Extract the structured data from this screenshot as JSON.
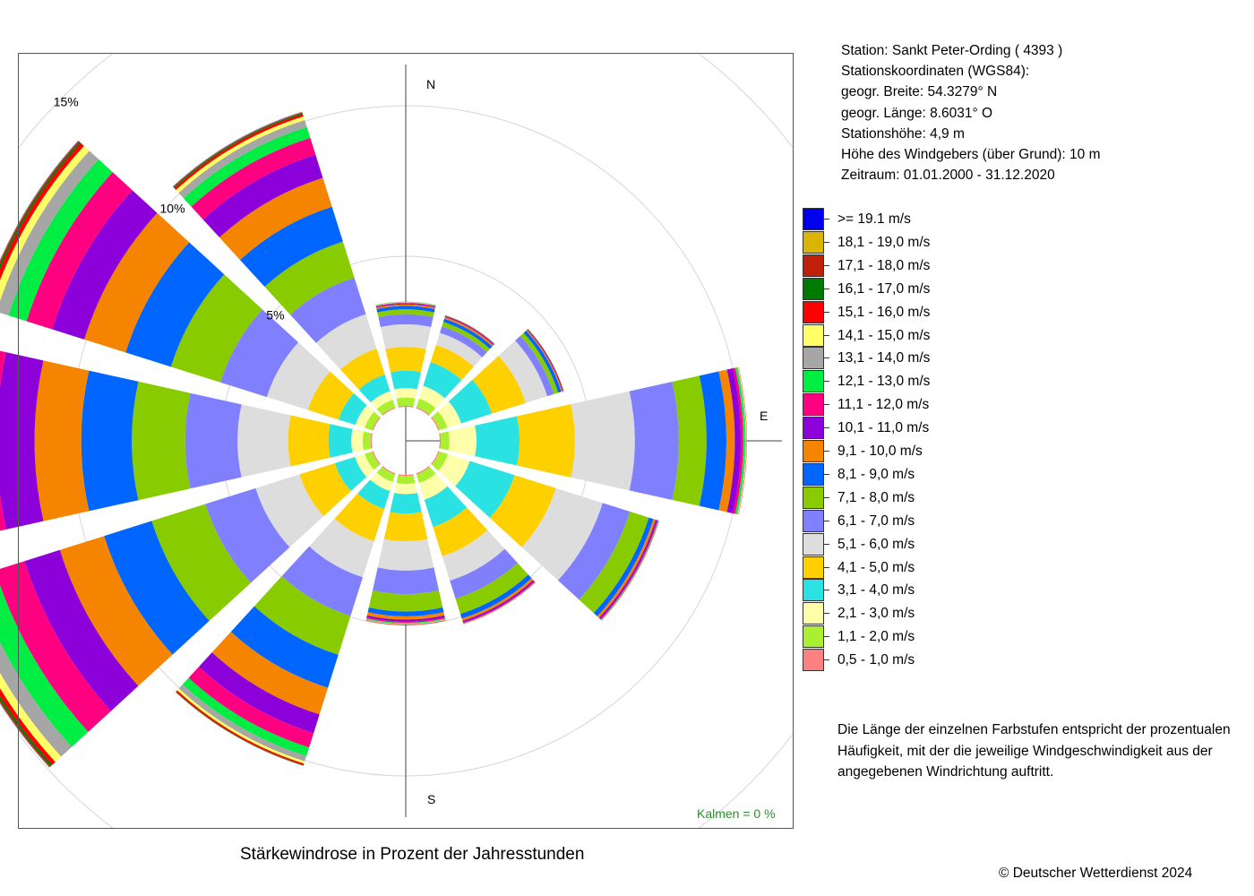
{
  "station": {
    "line1": "Station:  Sankt Peter-Ording  ( 4393 )",
    "line2": "Stationskoordinaten (WGS84):",
    "line3": "geogr. Breite: 54.3279° N",
    "line4": "geogr. Länge:   8.6031° O",
    "line5": "Stationshöhe: 4,9 m",
    "line6": "Höhe des Windgebers (über Grund): 10 m",
    "line7": "Zeitraum: 01.01.2000 - 31.12.2020"
  },
  "legend": [
    {
      "label": ">= 19.1 m/s",
      "color": "#0000ee"
    },
    {
      "label": "18,1 - 19,0 m/s",
      "color": "#d9b400"
    },
    {
      "label": "17,1 - 18,0 m/s",
      "color": "#c0200a"
    },
    {
      "label": "16,1 - 17,0 m/s",
      "color": "#007a00"
    },
    {
      "label": "15,1 - 16,0 m/s",
      "color": "#ff0000"
    },
    {
      "label": "14,1 - 15,0 m/s",
      "color": "#ffff66"
    },
    {
      "label": "13,1 - 14,0 m/s",
      "color": "#a6a6a6"
    },
    {
      "label": "12,1 - 13,0 m/s",
      "color": "#00ee44"
    },
    {
      "label": "11,1 - 12,0 m/s",
      "color": "#ff0080"
    },
    {
      "label": "10,1 - 11,0 m/s",
      "color": "#8c00d9"
    },
    {
      "label": "9,1 - 10,0 m/s",
      "color": "#f58400"
    },
    {
      "label": "8,1 - 9,0 m/s",
      "color": "#0066ff"
    },
    {
      "label": "7,1 - 8,0 m/s",
      "color": "#88cc00"
    },
    {
      "label": "6,1 - 7,0 m/s",
      "color": "#8080ff"
    },
    {
      "label": "5,1 - 6,0 m/s",
      "color": "#dddddd"
    },
    {
      "label": "4,1 - 5,0 m/s",
      "color": "#ffd000"
    },
    {
      "label": "3,1 - 4,0 m/s",
      "color": "#2ae2e2"
    },
    {
      "label": "2,1 - 3,0 m/s",
      "color": "#ffffaa"
    },
    {
      "label": "1,1 - 2,0 m/s",
      "color": "#aaf030"
    },
    {
      "label": "0,5 - 1,0 m/s",
      "color": "#ff8080"
    }
  ],
  "note": {
    "line1": "Die Länge der einzelnen Farbstufen entspricht der prozentualen",
    "line2": "Häufigkeit, mit der die jeweilige Windgeschwindigkeit aus der",
    "line3": "angegebenen Windrichtung auftritt."
  },
  "title": "Stärkewindrose in Prozent der Jahresstunden",
  "copyright": "© Deutscher Wetterdienst  2024",
  "calm_label": "Kalmen  =  0 %",
  "compass": {
    "N": "N",
    "E": "E",
    "S": "S"
  },
  "chart_data": {
    "type": "windrose",
    "directions_deg": [
      0,
      30,
      60,
      90,
      120,
      150,
      180,
      210,
      240,
      270,
      300,
      330
    ],
    "ring_labels": [
      "5%",
      "10%",
      "15%"
    ],
    "ring_values": [
      5,
      10,
      15
    ],
    "cumulative_percent": [
      [
        0.04,
        0.31,
        0.62,
        1.2,
        1.99,
        2.74,
        3.08,
        3.24,
        3.35,
        3.4,
        3.43,
        3.45,
        3.46,
        3.47,
        3.48,
        3.48,
        3.49,
        3.49,
        3.49,
        3.49
      ],
      [
        0.04,
        0.34,
        0.79,
        1.61,
        2.21,
        2.63,
        2.86,
        3.01,
        3.12,
        3.18,
        3.21,
        3.23,
        3.24,
        3.25,
        3.26,
        3.26,
        3.26,
        3.26,
        3.26,
        3.26
      ],
      [
        0.04,
        0.32,
        0.8,
        1.87,
        3.05,
        3.8,
        4.03,
        4.18,
        4.29,
        4.33,
        4.36,
        4.37,
        4.38,
        4.38,
        4.39,
        4.39,
        4.39,
        4.39,
        4.39,
        4.39
      ],
      [
        0.04,
        0.32,
        1.22,
        2.65,
        4.49,
        6.48,
        7.94,
        8.86,
        9.52,
        9.8,
        10.0,
        10.08,
        10.14,
        10.17,
        10.19,
        10.2,
        10.2,
        10.2,
        10.2,
        10.2
      ],
      [
        0.04,
        0.34,
        1.1,
        2.66,
        4.1,
        5.73,
        6.68,
        7.34,
        7.5,
        7.58,
        7.63,
        7.66,
        7.68,
        7.69,
        7.69,
        7.7,
        7.7,
        7.7,
        7.7,
        7.7
      ],
      [
        0.04,
        0.34,
        0.92,
        1.87,
        2.89,
        3.74,
        4.37,
        4.9,
        5.06,
        5.14,
        5.19,
        5.22,
        5.23,
        5.24,
        5.24,
        5.25,
        5.25,
        5.25,
        5.25,
        5.25
      ],
      [
        0.04,
        0.3,
        0.64,
        1.29,
        2.21,
        3.18,
        3.96,
        4.54,
        4.7,
        4.81,
        4.87,
        4.91,
        4.94,
        4.96,
        4.97,
        4.98,
        4.98,
        4.99,
        4.99,
        4.99
      ],
      [
        0.04,
        0.3,
        0.62,
        1.24,
        2.37,
        3.62,
        4.97,
        6.32,
        7.47,
        8.4,
        9.05,
        9.55,
        9.85,
        10.03,
        10.11,
        10.16,
        10.18,
        10.19,
        10.19,
        10.19
      ],
      [
        0.04,
        0.3,
        0.64,
        1.34,
        2.57,
        4.1,
        5.85,
        7.72,
        9.38,
        10.92,
        12.15,
        13.18,
        13.92,
        14.4,
        14.66,
        14.8,
        14.87,
        14.91,
        14.92,
        14.93
      ],
      [
        0.04,
        0.3,
        0.68,
        1.44,
        2.78,
        4.46,
        6.2,
        7.97,
        9.65,
        11.2,
        12.47,
        13.51,
        14.24,
        14.72,
        14.99,
        15.14,
        15.22,
        15.26,
        15.27,
        15.28
      ],
      [
        0.04,
        0.3,
        0.62,
        1.21,
        2.28,
        3.71,
        5.33,
        7.05,
        8.63,
        10.07,
        11.19,
        12.08,
        12.71,
        13.13,
        13.37,
        13.51,
        13.57,
        13.61,
        13.62,
        13.63
      ],
      [
        0.04,
        0.3,
        0.6,
        1.18,
        2.08,
        3.28,
        4.55,
        5.81,
        7.02,
        8.03,
        8.84,
        9.42,
        9.8,
        10.04,
        10.17,
        10.25,
        10.29,
        10.31,
        10.32,
        10.33
      ]
    ],
    "calm_percent": 0
  }
}
